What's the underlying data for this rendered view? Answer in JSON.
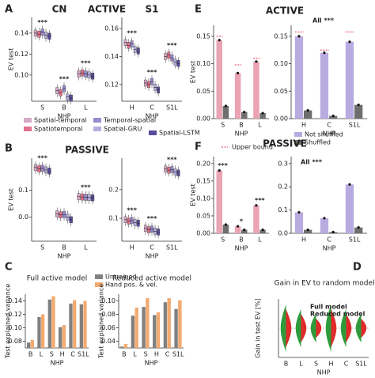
{
  "chart_data": [
    {
      "type": "box",
      "label": "A",
      "title": "CN",
      "heading": "ACTIVE",
      "ylabel": "EV test",
      "xlabel": "NHP",
      "categories": [
        "S",
        "B",
        "L"
      ],
      "ylim": [
        0.075,
        0.155
      ],
      "yticks": [
        {
          "value": 0.1,
          "label": "0.10"
        },
        0.12,
        0.14
      ],
      "annotations": [
        "***",
        "***",
        "***"
      ],
      "series": [
        {
          "name": "Spatial-temporal",
          "color": "#d8a8c8",
          "values": [
            0.14,
            0.085,
            0.101
          ]
        },
        {
          "name": "Spatiotemporal",
          "color": "#e2708e",
          "values": [
            0.139,
            0.083,
            0.102
          ]
        },
        {
          "name": "Temporal-spatial",
          "color": "#9a8ad0",
          "values": [
            0.141,
            0.087,
            0.101
          ]
        },
        {
          "name": "Spatial-GRU",
          "color": "#b8acdf",
          "values": [
            0.138,
            0.079,
            0.1
          ]
        },
        {
          "name": "Spatial-LSTM",
          "color": "#5a4a9c",
          "values": [
            0.137,
            0.078,
            0.099
          ]
        }
      ]
    },
    {
      "type": "box",
      "title": "S1",
      "xlabel": "NHP",
      "categories": [
        "H",
        "C",
        "S1L"
      ],
      "ylim": [
        0.108,
        0.168
      ],
      "yticks": [
        0.12,
        0.14,
        0.16
      ],
      "annotations": [
        "***",
        "***",
        "***"
      ],
      "series": [
        {
          "color": "#d8a8c8",
          "values": [
            0.15,
            0.121,
            0.14
          ]
        },
        {
          "color": "#e2708e",
          "values": [
            0.148,
            0.12,
            0.141
          ]
        },
        {
          "color": "#9a8ad0",
          "values": [
            0.149,
            0.122,
            0.139
          ]
        },
        {
          "color": "#b8acdf",
          "values": [
            0.145,
            0.118,
            0.136
          ]
        },
        {
          "color": "#5a4a9c",
          "values": [
            0.144,
            0.116,
            0.135
          ]
        }
      ]
    },
    {
      "type": "box",
      "label": "B",
      "heading": "PASSIVE",
      "ylabel": "EV test",
      "xlabel": "NHP",
      "categories": [
        "S",
        "B",
        "L"
      ],
      "ylim": [
        -0.09,
        0.22
      ],
      "yticks": [
        {
          "value": 0,
          "label": "0.0"
        },
        0.1
      ],
      "annotations": [
        "***",
        "",
        "***"
      ],
      "series": [
        {
          "color": "#d8a8c8",
          "values": [
            0.185,
            0.012,
            0.076
          ]
        },
        {
          "color": "#e2708e",
          "values": [
            0.18,
            0.008,
            0.075
          ]
        },
        {
          "color": "#9a8ad0",
          "values": [
            0.182,
            0.01,
            0.074
          ]
        },
        {
          "color": "#b8acdf",
          "values": [
            0.176,
            0.0,
            0.073
          ]
        },
        {
          "color": "#5a4a9c",
          "values": [
            0.172,
            -0.01,
            0.072
          ]
        }
      ]
    },
    {
      "type": "box",
      "xlabel": "NHP",
      "categories": [
        "H",
        "C",
        "S1L"
      ],
      "ylim": [
        0.02,
        0.31
      ],
      "yticks": [
        0.1,
        0.2
      ],
      "annotations": [
        "***",
        "***",
        "***"
      ],
      "series": [
        {
          "color": "#d8a8c8",
          "values": [
            0.095,
            0.065,
            0.272
          ]
        },
        {
          "color": "#e2708e",
          "values": [
            0.09,
            0.06,
            0.268
          ]
        },
        {
          "color": "#9a8ad0",
          "values": [
            0.092,
            0.062,
            0.27
          ]
        },
        {
          "color": "#b8acdf",
          "values": [
            0.085,
            0.055,
            0.262
          ]
        },
        {
          "color": "#5a4a9c",
          "values": [
            0.083,
            0.052,
            0.258
          ]
        }
      ]
    },
    {
      "type": "bar",
      "label": "C",
      "title": "Full active model",
      "ylabel": "Test explained variance",
      "xlabel": "NHP",
      "categories": [
        "B",
        "L",
        "S",
        "H",
        "C",
        "S1L"
      ],
      "ylim": [
        0.07,
        0.15
      ],
      "yticks": [
        0.08,
        {
          "value": 0.1,
          "label": "0.10"
        },
        0.12,
        0.14
      ],
      "series": [
        {
          "name": "Untrained",
          "color": "#808080",
          "values": [
            0.078,
            0.116,
            0.142,
            0.101,
            0.136,
            0.135
          ]
        },
        {
          "name": "Hand pos. & vel.",
          "color": "#f2aa70",
          "values": [
            0.082,
            0.12,
            0.147,
            0.104,
            0.141,
            0.14
          ]
        }
      ]
    },
    {
      "type": "bar",
      "title": "Reduced active model",
      "ylabel": "Test explained variance",
      "xlabel": "NHP",
      "categories": [
        "B",
        "L",
        "S",
        "H",
        "C",
        "S1L"
      ],
      "ylim": [
        0.03,
        0.11
      ],
      "yticks": [
        0.04,
        0.06,
        0.08,
        {
          "value": 0.1,
          "label": "0.10"
        }
      ],
      "series": [
        {
          "color": "#808080",
          "values": [
            0.032,
            0.078,
            0.091,
            0.079,
            0.098,
            0.088
          ]
        },
        {
          "color": "#f2aa70",
          "values": [
            0.036,
            0.09,
            0.104,
            0.083,
            0.104,
            0.101
          ]
        }
      ]
    },
    {
      "type": "bar",
      "label": "E",
      "heading": "ACTIVE",
      "ylabel": "EV test",
      "xlabel": "NHP",
      "categories": [
        "S",
        "B",
        "L"
      ],
      "ylim": [
        0,
        0.17
      ],
      "yticks": [
        {
          "value": 0,
          "label": "0.00"
        },
        0.05,
        {
          "value": 0.1,
          "label": "0.10"
        },
        0.15
      ],
      "series": [
        {
          "color": "#eba4b4",
          "values": [
            0.143,
            0.083,
            0.104
          ]
        },
        {
          "color": "#6e6e6e",
          "values": [
            0.023,
            0.012,
            0.01
          ]
        },
        {
          "name": "Upper bound",
          "color": "#e0304a",
          "style": "dash",
          "values": [
            0.15,
            0.098,
            0.11
          ]
        }
      ]
    },
    {
      "type": "bar",
      "note": "All ***",
      "xlabel": "NHP",
      "categories": [
        "H",
        "C",
        "S1L"
      ],
      "ylim": [
        0,
        0.17
      ],
      "yticks": [
        {
          "value": 0,
          "label": "0.00"
        },
        0.05,
        {
          "value": 0.1,
          "label": "0.10"
        },
        0.15
      ],
      "series": [
        {
          "name": "Not shuffled",
          "color": "#b8abdf",
          "values": [
            0.15,
            0.12,
            0.14
          ]
        },
        {
          "name": "Shuffled",
          "color": "#6e6e6e",
          "values": [
            0.015,
            0.005,
            0.025
          ]
        },
        {
          "color": "#e0304a",
          "style": "dash",
          "values": [
            0.158,
            0.125,
            0.158
          ]
        }
      ]
    },
    {
      "type": "bar",
      "label": "F",
      "heading": "PASSIVE",
      "ylabel": "EV test",
      "xlabel": "NHP",
      "categories": [
        "S",
        "B",
        "L"
      ],
      "ylim": [
        0,
        0.22
      ],
      "yticks": [
        {
          "value": 0,
          "label": "0.00"
        },
        0.05,
        {
          "value": 0.1,
          "label": "0.10"
        },
        0.15,
        {
          "value": 0.2,
          "label": "0.20"
        }
      ],
      "annotations": [
        "***",
        "*",
        "***"
      ],
      "series": [
        {
          "color": "#eba4b4",
          "values": [
            0.18,
            0.02,
            0.08
          ]
        },
        {
          "color": "#6e6e6e",
          "values": [
            0.025,
            0.01,
            0.01
          ]
        }
      ]
    },
    {
      "type": "bar",
      "note": "All ***",
      "xlabel": "NHP",
      "categories": [
        "H",
        "C",
        "S1L"
      ],
      "ylim": [
        0,
        0.33
      ],
      "yticks": [
        {
          "value": 0,
          "label": "0.0"
        },
        0.1,
        0.2,
        0.3
      ],
      "series": [
        {
          "color": "#b8abdf",
          "values": [
            0.09,
            0.065,
            0.21
          ]
        },
        {
          "color": "#6e6e6e",
          "values": [
            0.015,
            0.005,
            0.025
          ]
        }
      ]
    },
    {
      "type": "violin",
      "label": "D",
      "title": "Gain in EV to random model",
      "ylabel": "Gain in test EV [%]",
      "xlabel": "NHP",
      "categories": [
        "B",
        "L",
        "S",
        "H",
        "C",
        "S1L"
      ],
      "series": [
        {
          "name": "Full model",
          "color": "#2e9a3a"
        },
        {
          "name": "Reduced model",
          "color": "#e02a2a"
        }
      ]
    }
  ]
}
